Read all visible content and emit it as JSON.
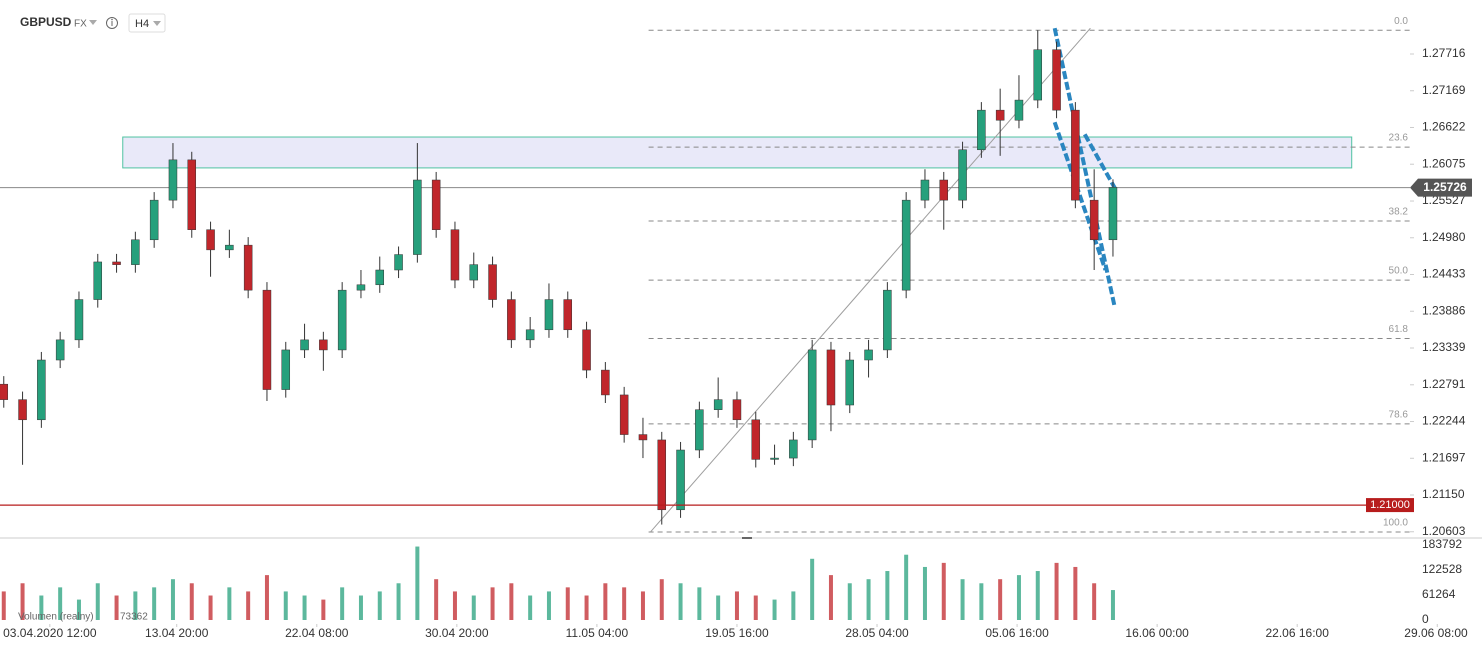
{
  "chart_data": {
    "type": "candlestick",
    "symbol": "GBPUSD",
    "market": "FX",
    "timeframe": "H4",
    "x": [
      0,
      1,
      2,
      3,
      4,
      5,
      6,
      7,
      8,
      9,
      10,
      11,
      12,
      13,
      14,
      15,
      16,
      17,
      18,
      19,
      20,
      21,
      22,
      23,
      24,
      25,
      26,
      27,
      28,
      29,
      30,
      31,
      32,
      33,
      34,
      35,
      36,
      37,
      38,
      39,
      40,
      41,
      42,
      43,
      44,
      45,
      46,
      47,
      48,
      49,
      50,
      51,
      52,
      53,
      54,
      55,
      56,
      57,
      58,
      59
    ],
    "open": [
      1.228,
      1.2257,
      1.2227,
      1.2316,
      1.2346,
      1.2406,
      1.2462,
      1.2458,
      1.2495,
      1.2554,
      1.2614,
      1.251,
      1.248,
      1.2487,
      1.242,
      1.2272,
      1.2331,
      1.2346,
      1.2331,
      1.242,
      1.2428,
      1.245,
      1.2473,
      1.2584,
      1.251,
      1.2435,
      1.2458,
      1.2406,
      1.2346,
      1.2361,
      1.2406,
      1.2361,
      1.2301,
      1.2264,
      1.2205,
      1.2197,
      1.2093,
      1.2182,
      1.2242,
      1.2257,
      1.2227,
      1.2168,
      1.217,
      1.2197,
      1.2331,
      1.2249,
      1.2316,
      1.2331,
      1.242,
      1.2554,
      1.2584,
      1.2554,
      1.2629,
      1.2688,
      1.2673,
      1.2703,
      1.2778,
      1.2688,
      1.2554,
      1.2495
    ],
    "high": [
      1.2292,
      1.2269,
      1.2328,
      1.2358,
      1.2418,
      1.2474,
      1.2474,
      1.2507,
      1.2566,
      1.2639,
      1.2626,
      1.2522,
      1.251,
      1.2499,
      1.2432,
      1.2343,
      1.237,
      1.2358,
      1.2432,
      1.245,
      1.247,
      1.2485,
      1.2639,
      1.2596,
      1.2522,
      1.2476,
      1.247,
      1.2418,
      1.238,
      1.243,
      1.2418,
      1.2373,
      1.2313,
      1.2276,
      1.223,
      1.2209,
      1.2194,
      1.2254,
      1.229,
      1.2269,
      1.2239,
      1.219,
      1.2209,
      1.2346,
      1.2343,
      1.2328,
      1.2346,
      1.2432,
      1.2566,
      1.26,
      1.2596,
      1.2641,
      1.27,
      1.272,
      1.274,
      1.2807,
      1.279,
      1.27,
      1.26,
      1.2585
    ],
    "low": [
      1.2245,
      1.216,
      1.2215,
      1.2304,
      1.2334,
      1.2394,
      1.2446,
      1.2446,
      1.2483,
      1.2542,
      1.2498,
      1.244,
      1.2468,
      1.2408,
      1.2255,
      1.226,
      1.2319,
      1.23,
      1.2319,
      1.2408,
      1.2416,
      1.2438,
      1.2461,
      1.2498,
      1.2423,
      1.2423,
      1.2394,
      1.2334,
      1.2334,
      1.2349,
      1.2349,
      1.2289,
      1.2252,
      1.2193,
      1.217,
      1.2071,
      1.2081,
      1.217,
      1.223,
      1.2215,
      1.2156,
      1.216,
      1.2158,
      1.2185,
      1.221,
      1.2237,
      1.229,
      1.2319,
      1.2408,
      1.2542,
      1.251,
      1.2542,
      1.2617,
      1.262,
      1.2661,
      1.2691,
      1.2676,
      1.2542,
      1.245,
      1.247
    ],
    "close": [
      1.2257,
      1.2227,
      1.2316,
      1.2346,
      1.2406,
      1.2462,
      1.2458,
      1.2495,
      1.2554,
      1.2614,
      1.251,
      1.248,
      1.2487,
      1.242,
      1.2272,
      1.2331,
      1.2346,
      1.2331,
      1.242,
      1.2428,
      1.245,
      1.2473,
      1.2584,
      1.251,
      1.2435,
      1.2458,
      1.2406,
      1.2346,
      1.2361,
      1.2406,
      1.2361,
      1.2301,
      1.2264,
      1.2205,
      1.2197,
      1.2093,
      1.2182,
      1.2242,
      1.2257,
      1.2227,
      1.2168,
      1.217,
      1.2197,
      1.2331,
      1.2249,
      1.2316,
      1.2331,
      1.242,
      1.2554,
      1.2584,
      1.2554,
      1.2629,
      1.2688,
      1.2673,
      1.2703,
      1.2778,
      1.2688,
      1.2554,
      1.2495,
      1.2573
    ],
    "up_color": "#26a07c",
    "down_color": "#c0262b",
    "xlim": [
      -0.2,
      74.8
    ],
    "xticks": [
      {
        "value": 2.45,
        "label": "03.04.2020 12:00"
      },
      {
        "value": 9.2,
        "label": "13.04 20:00"
      },
      {
        "value": 16.65,
        "label": "22.04 08:00"
      },
      {
        "value": 24.1,
        "label": "30.04 20:00"
      },
      {
        "value": 31.55,
        "label": "11.05 04:00"
      },
      {
        "value": 39.0,
        "label": "19.05 16:00"
      },
      {
        "value": 46.45,
        "label": "28.05 04:00"
      },
      {
        "value": 53.9,
        "label": "05.06 16:00"
      },
      {
        "value": 61.35,
        "label": "16.06 00:00"
      },
      {
        "value": 68.8,
        "label": "22.06 16:00"
      },
      {
        "value": 76.25,
        "label": "29.06 08:00"
      }
    ],
    "ylim": [
      1.2051,
      1.2852
    ],
    "yticks": [
      1.27716,
      1.27169,
      1.26622,
      1.26075,
      1.25527,
      {
        "value": 1.2498,
        "label": "1.24980"
      },
      1.24433,
      1.23886,
      1.23339,
      1.22791,
      1.22244,
      1.21697,
      {
        "value": 1.2115,
        "label": "1.21150"
      },
      1.20603
    ],
    "last_price": 1.25726,
    "level": {
      "value": 1.21,
      "label": "1.21000",
      "color": "#b71c1c"
    },
    "zone": {
      "x": [
        6.33,
        71.7
      ],
      "y": [
        1.2602,
        1.2648
      ]
    },
    "fibonacci": {
      "x": [
        34.3,
        74.8
      ],
      "levels": [
        {
          "value": 1.2807,
          "label": "0.0"
        },
        {
          "value": 1.2633,
          "label": "23.6"
        },
        {
          "value": 1.2523,
          "label": "38.2"
        },
        {
          "value": 1.2435,
          "label": "50.0"
        },
        {
          "value": 1.2348,
          "label": "61.8"
        },
        {
          "value": 1.2221,
          "label": "78.6"
        },
        {
          "value": 1.206,
          "label": "100.0"
        }
      ]
    },
    "trendlines": [
      {
        "x": [
          34.4,
          57.8
        ],
        "y": [
          1.206,
          1.281
        ],
        "color": "#9e9e9e",
        "dashed": false
      },
      {
        "x": [
          55.9,
          59.1
        ],
        "y": [
          1.281,
          1.2394
        ],
        "color": "#2a86c0",
        "dashed": true
      },
      {
        "x": [
          55.9,
          58.6
        ],
        "y": [
          1.267,
          1.245
        ],
        "color": "#2a86c0",
        "dashed": true
      },
      {
        "x": [
          57.5,
          59.1
        ],
        "y": [
          1.2652,
          1.2572
        ],
        "color": "#2a86c0",
        "dashed": true
      }
    ],
    "volume": {
      "name": "Volumen (realny)",
      "values": [
        70000,
        90000,
        60000,
        80000,
        50000,
        90000,
        60000,
        70000,
        80000,
        100000,
        90000,
        60000,
        80000,
        70000,
        110000,
        70000,
        60000,
        50000,
        80000,
        60000,
        70000,
        90000,
        180000,
        100000,
        70000,
        60000,
        80000,
        90000,
        60000,
        70000,
        80000,
        60000,
        90000,
        80000,
        70000,
        100000,
        90000,
        80000,
        60000,
        70000,
        60000,
        50000,
        70000,
        150000,
        110000,
        90000,
        100000,
        120000,
        160000,
        130000,
        140000,
        100000,
        90000,
        100000,
        110000,
        120000,
        140000,
        130000,
        90000,
        73362
      ],
      "ylim": [
        0,
        183792
      ],
      "yticks": [
        0,
        61264,
        122528,
        183792
      ]
    }
  }
}
